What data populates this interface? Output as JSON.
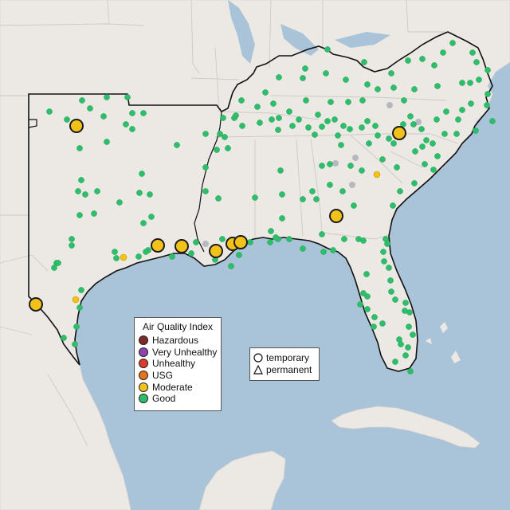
{
  "legend": {
    "title": "Air Quality Index",
    "categories": [
      {
        "label": "Hazardous",
        "color": "#7e2a2a"
      },
      {
        "label": "Very Unhealthy",
        "color": "#8e44ad"
      },
      {
        "label": "Unhealthy",
        "color": "#e03a2c"
      },
      {
        "label": "USG",
        "color": "#e8741a"
      },
      {
        "label": "Moderate",
        "color": "#f2c21b"
      },
      {
        "label": "Good",
        "color": "#2ebd6b"
      }
    ]
  },
  "shape_legend": {
    "temporary": "temporary",
    "permanent": "permanent"
  },
  "colors": {
    "water": "#a9c3d9",
    "land": "#ece8e4",
    "inactive_site": "#b5b9bf"
  }
}
